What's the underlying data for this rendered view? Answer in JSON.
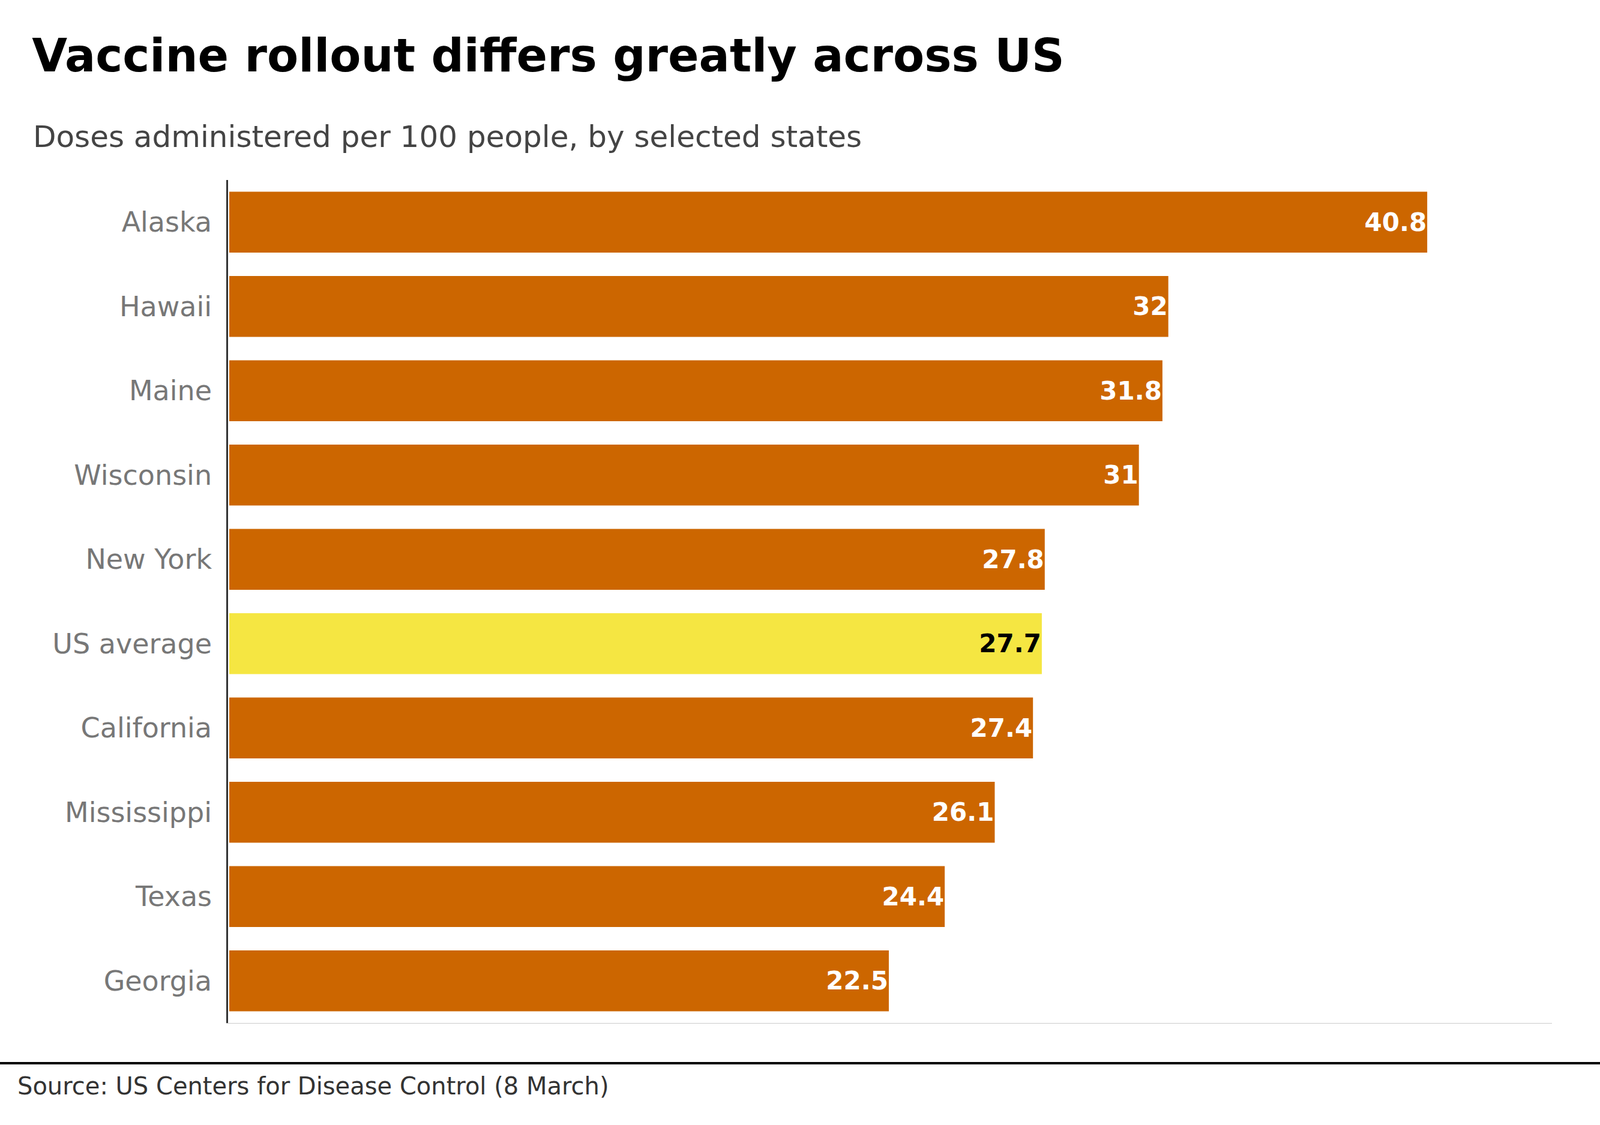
{
  "chart_data": {
    "type": "bar",
    "orientation": "horizontal",
    "title": "Vaccine rollout differs greatly across US",
    "subtitle": "Doses administered per 100 people, by selected states",
    "source": "Source: US Centers for Disease Control (8 March)",
    "categories": [
      "Alaska",
      "Hawaii",
      "Maine",
      "Wisconsin",
      "New York",
      "US average",
      "California",
      "Mississippi",
      "Texas",
      "Georgia"
    ],
    "values": [
      40.8,
      32.0,
      31.8,
      31.0,
      27.8,
      27.7,
      27.4,
      26.1,
      24.4,
      22.5
    ],
    "colors": [
      "#cc6600",
      "#cc6600",
      "#cc6600",
      "#cc6600",
      "#cc6600",
      "#f5e642",
      "#cc6600",
      "#cc6600",
      "#cc6600",
      "#cc6600"
    ],
    "xlim": [
      0,
      45
    ],
    "data_labels": true,
    "tick_labels": "y",
    "grid": false
  }
}
